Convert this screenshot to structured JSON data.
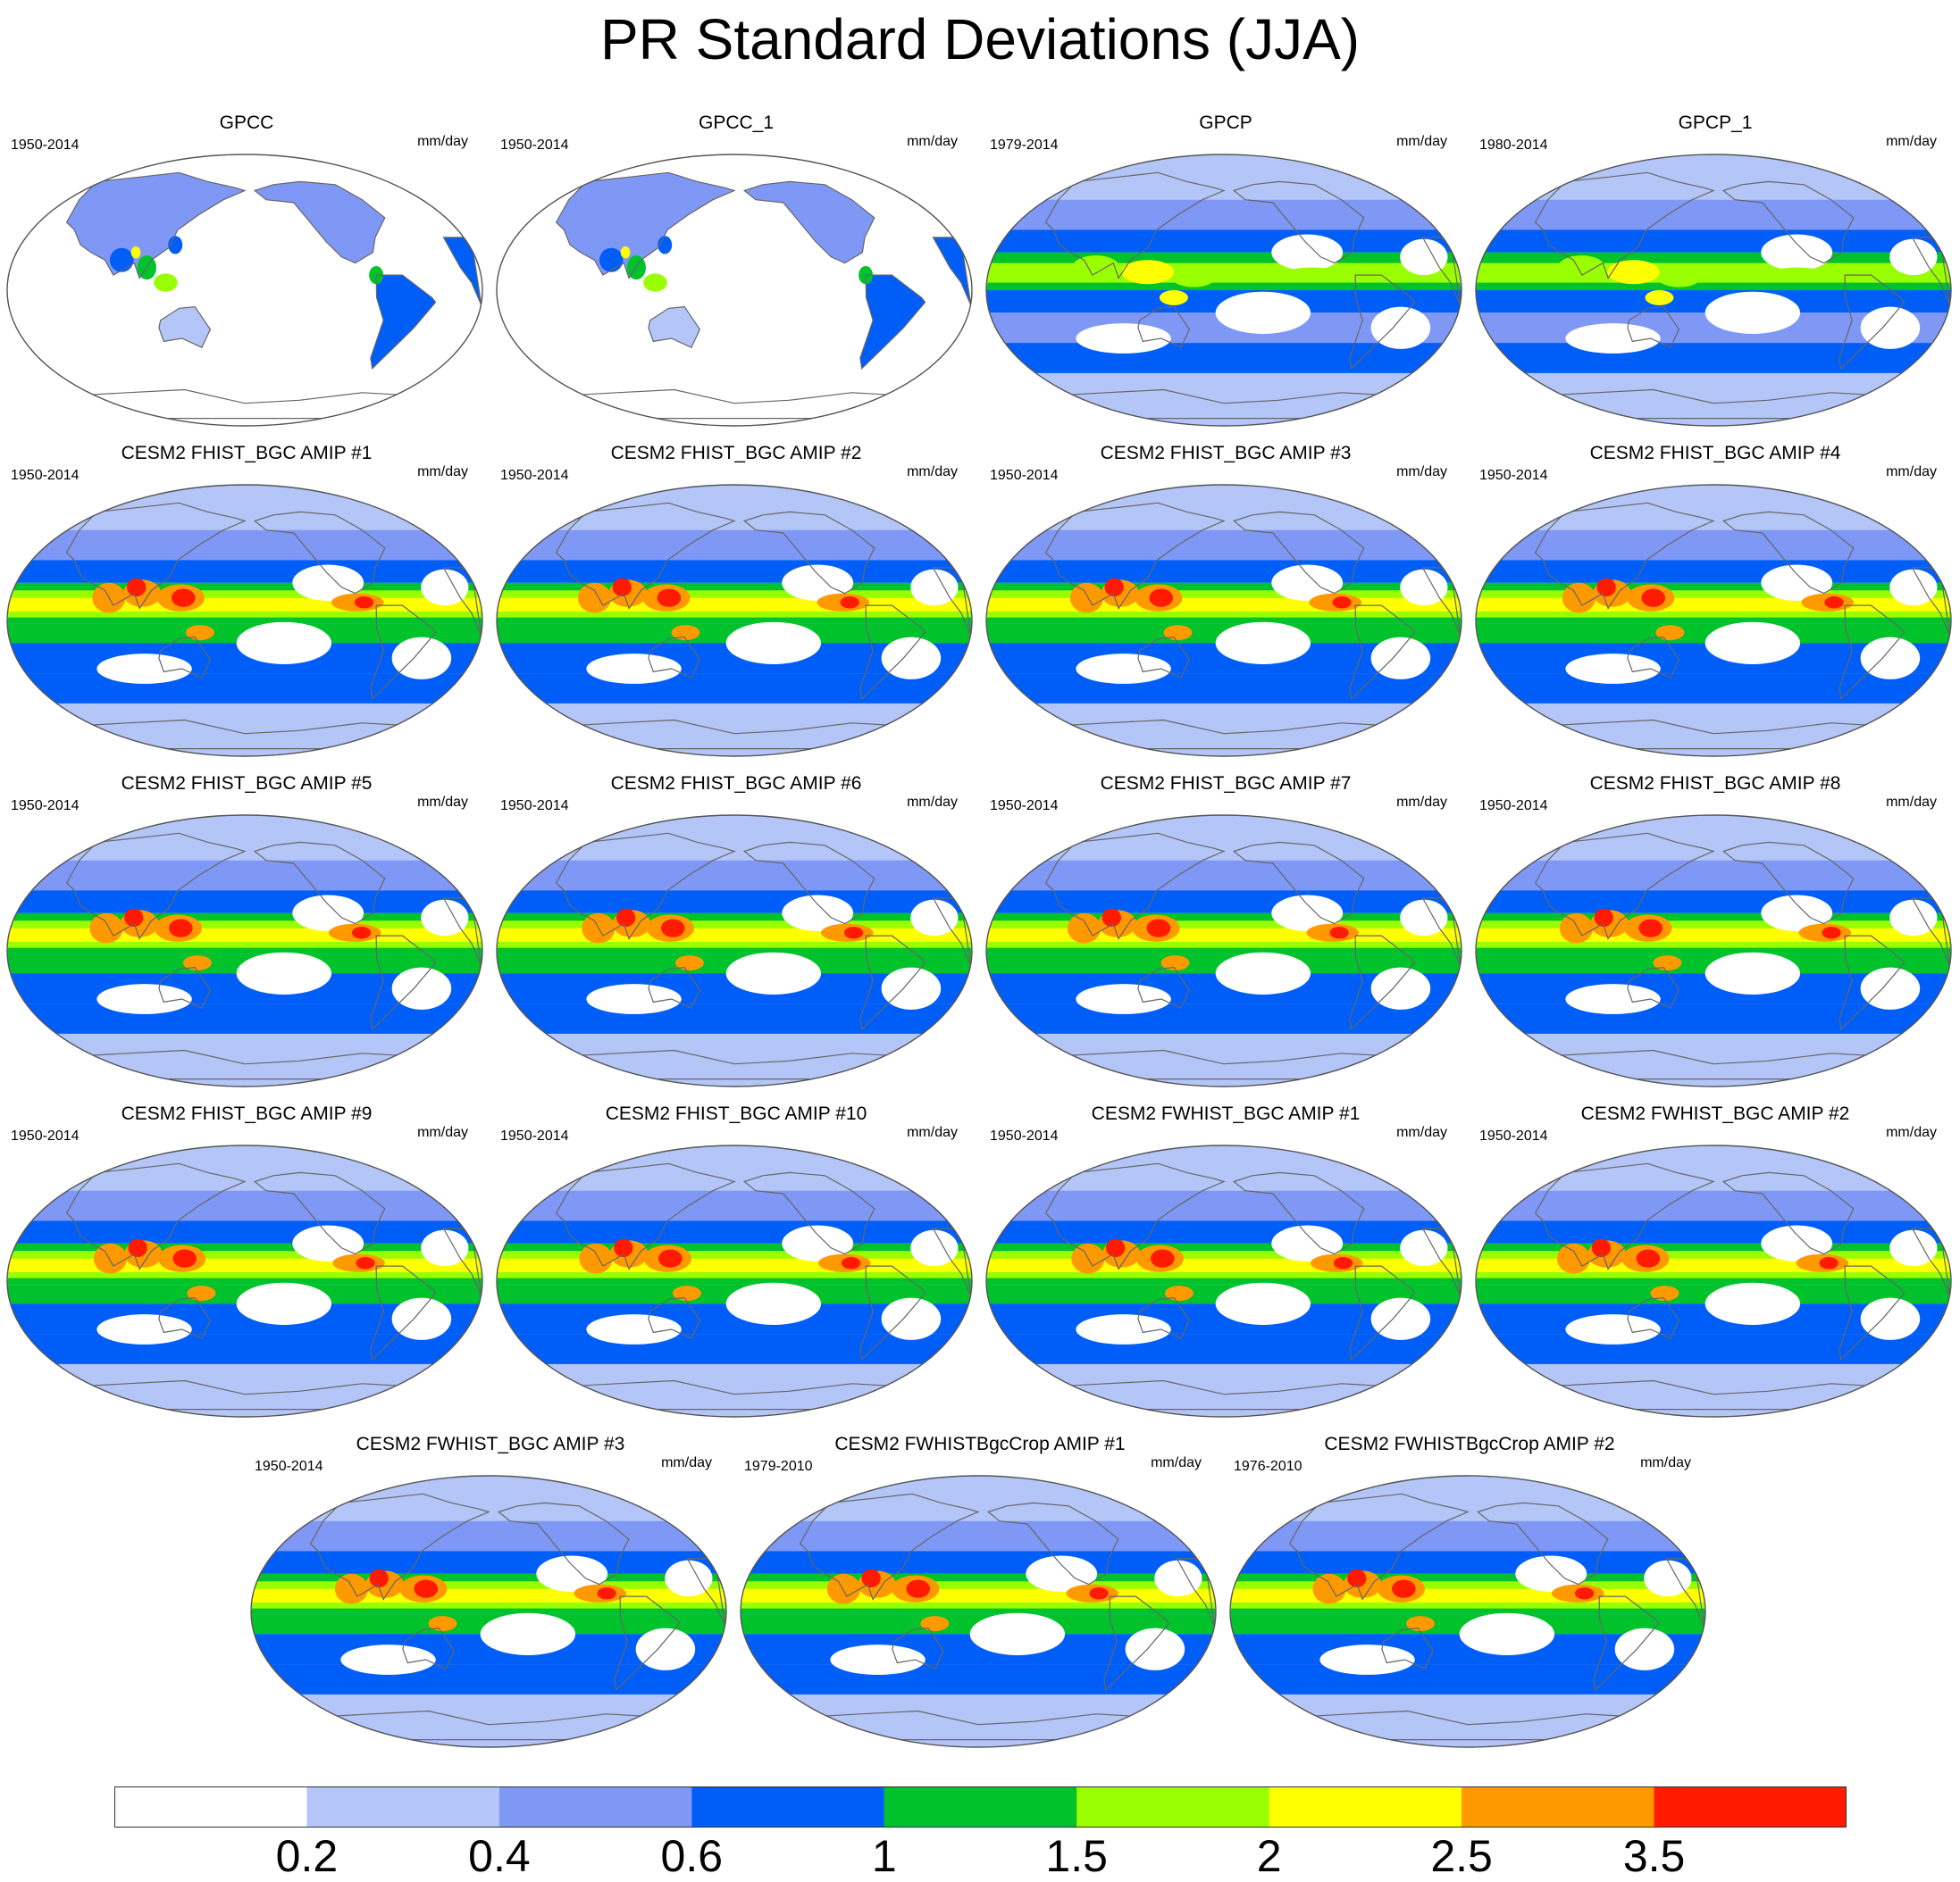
{
  "title": "PR Standard Deviations (JJA)",
  "panels": [
    {
      "title": "GPCC",
      "period": "1950-2014",
      "units": "mm/day",
      "kind": "land"
    },
    {
      "title": "GPCC_1",
      "period": "1950-2014",
      "units": "mm/day",
      "kind": "land"
    },
    {
      "title": "GPCP",
      "period": "1979-2014",
      "units": "mm/day",
      "kind": "obs"
    },
    {
      "title": "GPCP_1",
      "period": "1980-2014",
      "units": "mm/day",
      "kind": "obs"
    },
    {
      "title": "CESM2 FHIST_BGC AMIP #1",
      "period": "1950-2014",
      "units": "mm/day",
      "kind": "model"
    },
    {
      "title": "CESM2 FHIST_BGC AMIP #2",
      "period": "1950-2014",
      "units": "mm/day",
      "kind": "model"
    },
    {
      "title": "CESM2 FHIST_BGC AMIP #3",
      "period": "1950-2014",
      "units": "mm/day",
      "kind": "model"
    },
    {
      "title": "CESM2 FHIST_BGC AMIP #4",
      "period": "1950-2014",
      "units": "mm/day",
      "kind": "model"
    },
    {
      "title": "CESM2 FHIST_BGC AMIP #5",
      "period": "1950-2014",
      "units": "mm/day",
      "kind": "model"
    },
    {
      "title": "CESM2 FHIST_BGC AMIP #6",
      "period": "1950-2014",
      "units": "mm/day",
      "kind": "model"
    },
    {
      "title": "CESM2 FHIST_BGC AMIP #7",
      "period": "1950-2014",
      "units": "mm/day",
      "kind": "model"
    },
    {
      "title": "CESM2 FHIST_BGC AMIP #8",
      "period": "1950-2014",
      "units": "mm/day",
      "kind": "model"
    },
    {
      "title": "CESM2 FHIST_BGC AMIP #9",
      "period": "1950-2014",
      "units": "mm/day",
      "kind": "model"
    },
    {
      "title": "CESM2 FHIST_BGC AMIP #10",
      "period": "1950-2014",
      "units": "mm/day",
      "kind": "model"
    },
    {
      "title": "CESM2 FWHIST_BGC AMIP #1",
      "period": "1950-2014",
      "units": "mm/day",
      "kind": "model"
    },
    {
      "title": "CESM2 FWHIST_BGC AMIP #2",
      "period": "1950-2014",
      "units": "mm/day",
      "kind": "model"
    },
    {
      "title": "CESM2 FWHIST_BGC AMIP #3",
      "period": "1950-2014",
      "units": "mm/day",
      "kind": "model"
    },
    {
      "title": "CESM2 FWHISTBgcCrop AMIP #1",
      "period": "1979-2010",
      "units": "mm/day",
      "kind": "model"
    },
    {
      "title": "CESM2 FWHISTBgcCrop AMIP #2",
      "period": "1976-2010",
      "units": "mm/day",
      "kind": "model"
    }
  ],
  "colorbar": {
    "labels": [
      "0.2",
      "0.4",
      "0.6",
      "1",
      "1.5",
      "2",
      "2.5",
      "3.5"
    ],
    "colors": [
      "#ffffff",
      "#b4c6f8",
      "#7f98f5",
      "#005ef8",
      "#00c22b",
      "#99ff00",
      "#ffff00",
      "#ff9900",
      "#ff1a00"
    ]
  }
}
